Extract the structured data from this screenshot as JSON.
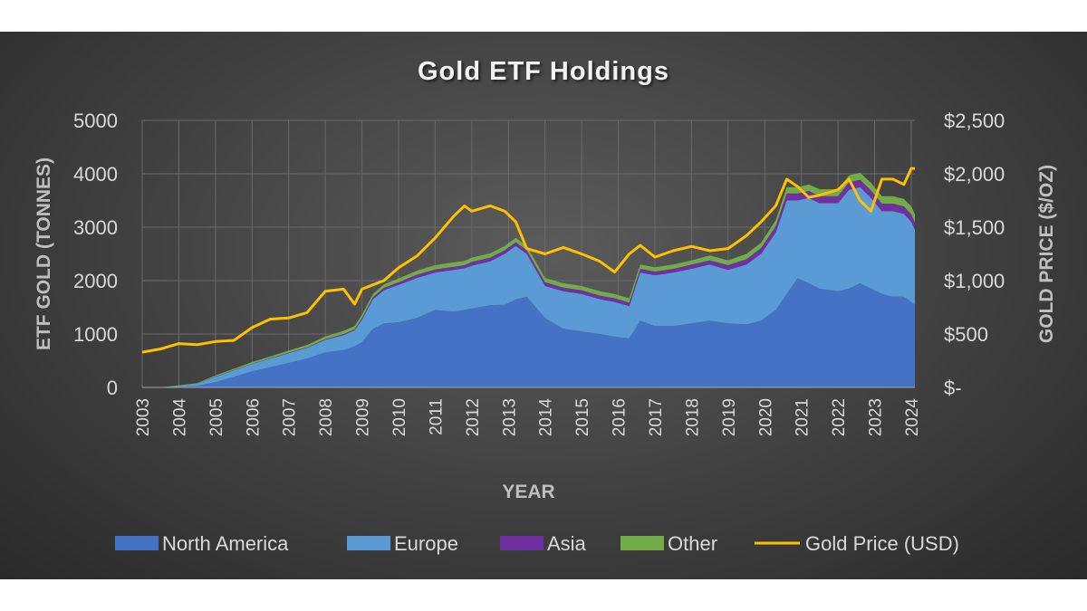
{
  "chart_data": {
    "type": "area",
    "title": "Gold ETF Holdings",
    "xlabel": "YEAR",
    "ylabel": "ETF GOLD (TONNES)",
    "y2label": "GOLD PRICE ($/OZ)",
    "ylim": [
      0,
      5000
    ],
    "y2lim": [
      0,
      2500
    ],
    "x_ticks": [
      "2003",
      "2004",
      "2005",
      "2006",
      "2007",
      "2008",
      "2009",
      "2010",
      "2011",
      "2012",
      "2013",
      "2014",
      "2015",
      "2016",
      "2017",
      "2018",
      "2019",
      "2020",
      "2021",
      "2022",
      "2023",
      "2024"
    ],
    "y_ticks": [
      "0",
      "1000",
      "2000",
      "3000",
      "4000",
      "5000"
    ],
    "y2_ticks": [
      "$-",
      "$500",
      "$1,000",
      "$1,500",
      "$2,000",
      "$2,500"
    ],
    "grid": true,
    "legend_position": "bottom",
    "x": [
      2003.0,
      2003.5,
      2004.0,
      2004.5,
      2005.0,
      2005.5,
      2006.0,
      2006.5,
      2007.0,
      2007.5,
      2008.0,
      2008.5,
      2008.8,
      2009.0,
      2009.3,
      2009.6,
      2010.0,
      2010.5,
      2011.0,
      2011.5,
      2011.8,
      2012.0,
      2012.5,
      2012.9,
      2013.2,
      2013.5,
      2014.0,
      2014.5,
      2015.0,
      2015.5,
      2015.9,
      2016.3,
      2016.6,
      2017.0,
      2017.5,
      2018.0,
      2018.5,
      2019.0,
      2019.5,
      2019.9,
      2020.3,
      2020.6,
      2020.9,
      2021.2,
      2021.5,
      2022.0,
      2022.3,
      2022.6,
      2022.9,
      2023.2,
      2023.5,
      2023.8,
      2024.0,
      2024.1
    ],
    "series": [
      {
        "name": "North America",
        "color": "#4472c4",
        "kind": "area",
        "values": [
          0,
          0,
          10,
          30,
          100,
          200,
          300,
          380,
          460,
          540,
          660,
          700,
          770,
          850,
          1100,
          1200,
          1220,
          1300,
          1450,
          1420,
          1450,
          1480,
          1540,
          1550,
          1650,
          1700,
          1300,
          1100,
          1050,
          1000,
          950,
          920,
          1250,
          1150,
          1150,
          1200,
          1250,
          1200,
          1180,
          1250,
          1450,
          1750,
          2050,
          1950,
          1850,
          1800,
          1850,
          1950,
          1850,
          1750,
          1700,
          1700,
          1600,
          1550
        ]
      },
      {
        "name": "Europe",
        "color": "#5b9bd5",
        "kind": "area",
        "values": [
          0,
          0,
          20,
          40,
          100,
          120,
          140,
          160,
          180,
          200,
          230,
          280,
          300,
          420,
          550,
          620,
          700,
          750,
          700,
          780,
          780,
          800,
          820,
          950,
          1000,
          800,
          600,
          700,
          700,
          650,
          650,
          600,
          900,
          950,
          1000,
          1020,
          1050,
          1000,
          1120,
          1250,
          1450,
          1750,
          1450,
          1600,
          1600,
          1650,
          1850,
          1800,
          1700,
          1550,
          1600,
          1550,
          1500,
          1400
        ]
      },
      {
        "name": "Asia",
        "color": "#7030a0",
        "kind": "area",
        "values": [
          0,
          0,
          0,
          0,
          5,
          5,
          5,
          5,
          10,
          10,
          15,
          20,
          20,
          30,
          40,
          45,
          50,
          60,
          60,
          60,
          60,
          70,
          70,
          70,
          70,
          70,
          70,
          70,
          70,
          70,
          70,
          70,
          70,
          70,
          70,
          80,
          80,
          90,
          100,
          110,
          120,
          130,
          130,
          130,
          130,
          130,
          140,
          140,
          140,
          140,
          140,
          140,
          140,
          140
        ]
      },
      {
        "name": "Other",
        "color": "#70ad47",
        "kind": "area",
        "values": [
          0,
          0,
          10,
          10,
          20,
          25,
          30,
          35,
          40,
          45,
          50,
          60,
          60,
          60,
          60,
          65,
          70,
          75,
          80,
          80,
          80,
          80,
          80,
          80,
          80,
          80,
          80,
          80,
          80,
          80,
          80,
          80,
          80,
          80,
          80,
          80,
          90,
          90,
          100,
          100,
          110,
          120,
          120,
          120,
          130,
          130,
          130,
          130,
          140,
          140,
          140,
          140,
          150,
          150
        ]
      },
      {
        "name": "Gold Price (USD)",
        "color": "#ffc000",
        "kind": "line",
        "axis": "right",
        "values": [
          330,
          360,
          410,
          400,
          430,
          440,
          560,
          640,
          650,
          700,
          900,
          920,
          780,
          920,
          960,
          1000,
          1120,
          1230,
          1400,
          1600,
          1700,
          1650,
          1700,
          1650,
          1550,
          1300,
          1250,
          1310,
          1250,
          1180,
          1080,
          1250,
          1330,
          1220,
          1280,
          1320,
          1280,
          1300,
          1420,
          1550,
          1700,
          1950,
          1880,
          1780,
          1800,
          1850,
          1950,
          1750,
          1650,
          1950,
          1950,
          1900,
          2050,
          2050
        ]
      }
    ]
  }
}
